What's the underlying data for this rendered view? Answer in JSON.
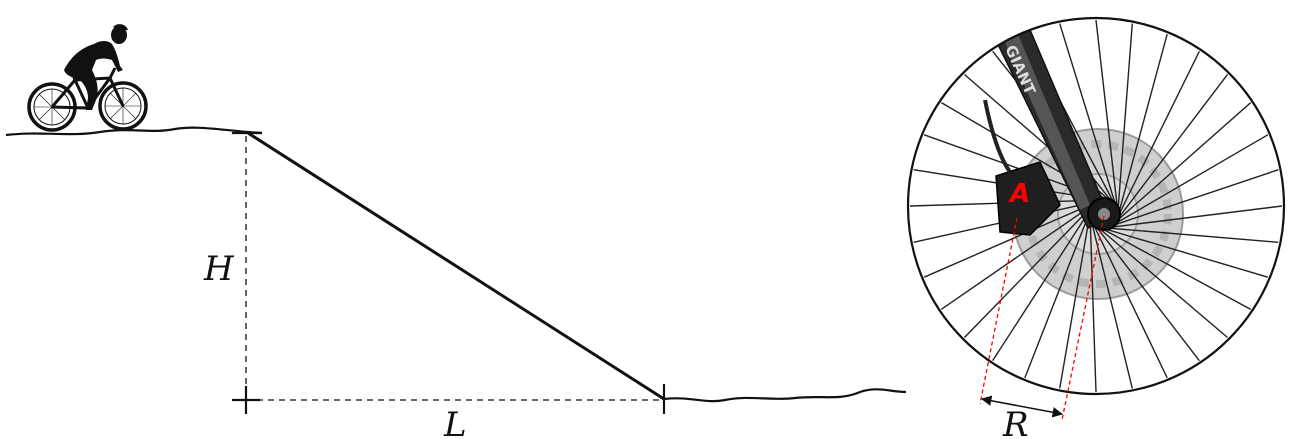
{
  "labels": {
    "height": "H",
    "length": "L",
    "radius": "R",
    "point": "A"
  },
  "fork_brand": "GIANT",
  "colors": {
    "ink": "#111111",
    "marker": "#ff0000",
    "disc": "#c9c9c9",
    "fork": "#2a2a2a"
  },
  "icons": {
    "cyclist": "cyclist-silhouette-icon",
    "wheel": "bicycle-wheel-icon"
  }
}
